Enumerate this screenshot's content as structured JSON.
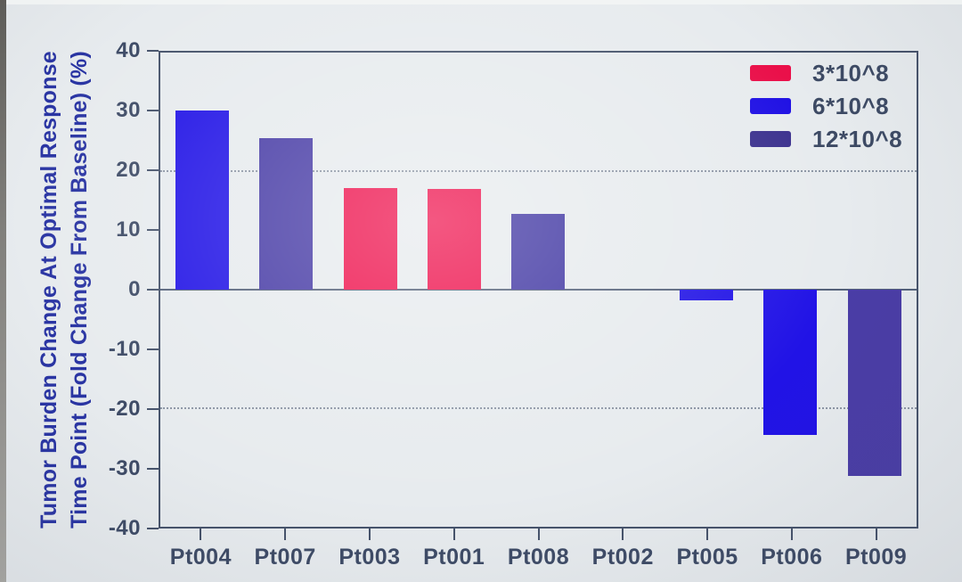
{
  "figure": {
    "background_color": "#e7ebee",
    "axis_color": "#46536b",
    "tick_text_color": "#3e4b66",
    "y_title_color": "#2a35a3"
  },
  "y_axis": {
    "title_line1": "Tumor Burden Change At Optimal Response",
    "title_line2": "Time Point (Fold Change From Baseline) (%)",
    "ticks": [
      40,
      30,
      20,
      10,
      0,
      -10,
      -20,
      -30,
      -40
    ]
  },
  "legend": {
    "position": "top-right",
    "items": [
      {
        "label": "3*10^8",
        "color": "#ea104a"
      },
      {
        "label": "6*10^8",
        "color": "#1f10e4"
      },
      {
        "label": "12*10^8",
        "color": "#3b318e"
      }
    ]
  },
  "chart_data": {
    "type": "bar",
    "title": "",
    "xlabel": "",
    "ylabel": "Tumor Burden Change At Optimal Response Time Point (Fold Change From Baseline) (%)",
    "ylim": [
      -40,
      40
    ],
    "dotted_gridlines_at": [
      20,
      -20
    ],
    "zero_line": true,
    "legend_position": "top-right",
    "categories": [
      "Pt004",
      "Pt007",
      "Pt003",
      "Pt001",
      "Pt008",
      "Pt002",
      "Pt005",
      "Pt006",
      "Pt009"
    ],
    "series_group_per_bar": [
      "6*10^8",
      "12*10^8",
      "3*10^8",
      "3*10^8",
      "12*10^8",
      null,
      "6*10^8",
      "6*10^8",
      "12*10^8"
    ],
    "values": [
      30.3,
      25.5,
      17.2,
      17.0,
      12.8,
      0,
      -1.8,
      -24.5,
      -31.5
    ],
    "bar_colors": [
      "#2113e6",
      "#463aa5",
      "#ee0f4b",
      "#ee0f4b",
      "#3f35a2",
      null,
      "#2113e6",
      "#2113e6",
      "#4a3da6"
    ]
  }
}
